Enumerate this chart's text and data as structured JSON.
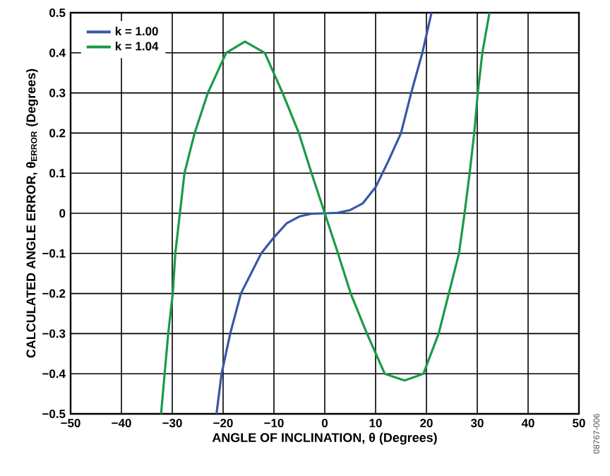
{
  "chart_data": {
    "type": "line",
    "xlabel": "ANGLE OF INCLINATION, θ (Degrees)",
    "ylabel": "CALCULATED ANGLE ERROR, θ$_{ERROR}$ (Degrees)",
    "annotations": [
      "08767-006"
    ],
    "xlim": [
      -50,
      50
    ],
    "ylim": [
      -0.5,
      0.5
    ],
    "xticks": [
      {
        "value": -50,
        "label": "−50"
      },
      {
        "value": -40,
        "label": "−40"
      },
      {
        "value": -30,
        "label": "−30"
      },
      {
        "value": -20,
        "label": "−20"
      },
      {
        "value": -10,
        "label": "−10"
      },
      0,
      10,
      20,
      30,
      40,
      50
    ],
    "yticks": [
      {
        "value": -0.5,
        "label": "−0.5"
      },
      {
        "value": -0.4,
        "label": "−0.4"
      },
      {
        "value": -0.3,
        "label": "−0.3"
      },
      {
        "value": -0.2,
        "label": "−0.2"
      },
      {
        "value": -0.1,
        "label": "−0.1"
      },
      0,
      0.1,
      0.2,
      0.3,
      0.4,
      0.5
    ],
    "grid": true,
    "legend": "top left",
    "marker": "none",
    "line_style": "solid",
    "series": [
      {
        "name": "k = 1.00",
        "color": "#3a56a8",
        "x": [
          -21.3,
          -20.3,
          -18.6,
          -16.5,
          -12.5,
          -10,
          -7.5,
          -5,
          -2.5,
          0,
          2.5,
          5,
          7.5,
          10,
          12.5,
          15,
          17,
          19.2,
          21
        ],
        "values": [
          -0.5,
          -0.4,
          -0.3,
          -0.2,
          -0.1,
          -0.06,
          -0.025,
          -0.008,
          -0.001,
          0,
          0.001,
          0.008,
          0.025,
          0.065,
          0.13,
          0.2,
          0.3,
          0.4,
          0.5
        ]
      },
      {
        "name": "k = 1.04",
        "color": "#1a9a48",
        "x": [
          -32.2,
          -31.5,
          -30.8,
          -29.9,
          -29.4,
          -28.5,
          -27.6,
          -25.6,
          -23,
          -19.4,
          -15.7,
          -11.8,
          -8.3,
          -5.1,
          -2.6,
          0,
          2.6,
          5.1,
          8.3,
          11.8,
          15.7,
          19.4,
          22.4,
          24.4,
          26.4,
          27.5,
          28.5,
          29.4,
          30.1,
          31,
          32.4
        ],
        "values": [
          -0.5,
          -0.4,
          -0.3,
          -0.2,
          -0.1,
          0,
          0.1,
          0.2,
          0.3,
          0.4,
          0.428,
          0.4,
          0.3,
          0.2,
          0.1,
          0,
          -0.1,
          -0.2,
          -0.3,
          -0.4,
          -0.417,
          -0.4,
          -0.3,
          -0.2,
          -0.1,
          0,
          0.1,
          0.2,
          0.3,
          0.4,
          0.5
        ]
      }
    ]
  }
}
